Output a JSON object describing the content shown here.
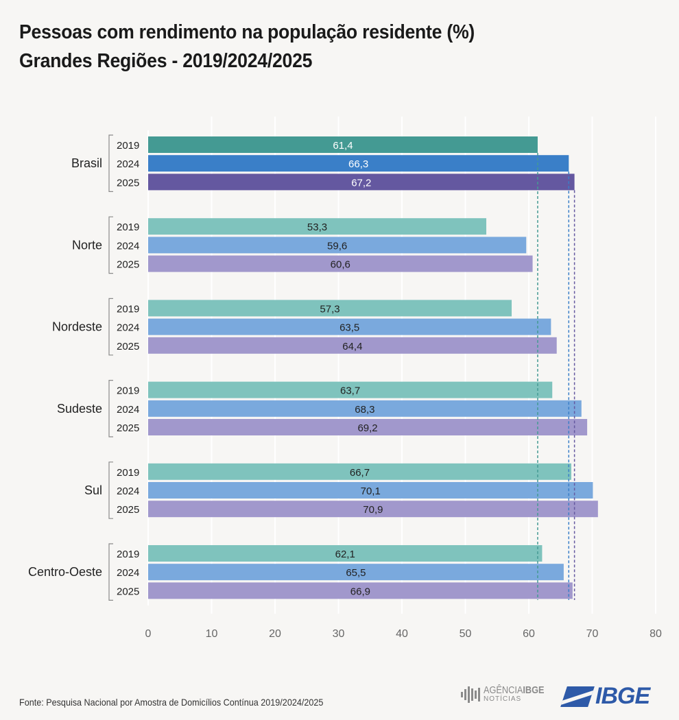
{
  "title": {
    "line1": "Pessoas com rendimento na população residente (%)",
    "line2": "Grandes Regiões - 2019/2024/2025"
  },
  "chart_data": {
    "type": "bar",
    "orientation": "horizontal",
    "categories": [
      "Brasil",
      "Norte",
      "Nordeste",
      "Sudeste",
      "Sul",
      "Centro-Oeste"
    ],
    "series": [
      {
        "name": "2019",
        "values": [
          61.4,
          53.3,
          57.3,
          63.7,
          66.7,
          62.1
        ]
      },
      {
        "name": "2024",
        "values": [
          66.3,
          59.6,
          63.5,
          68.3,
          70.1,
          65.5
        ]
      },
      {
        "name": "2025",
        "values": [
          67.2,
          60.6,
          64.4,
          69.2,
          70.9,
          66.9
        ]
      }
    ],
    "value_labels": [
      [
        "61,4",
        "66,3",
        "67,2"
      ],
      [
        "53,3",
        "59,6",
        "60,6"
      ],
      [
        "57,3",
        "63,5",
        "64,4"
      ],
      [
        "63,7",
        "68,3",
        "69,2"
      ],
      [
        "66,7",
        "70,1",
        "70,9"
      ],
      [
        "62,1",
        "65,5",
        "66,9"
      ]
    ],
    "xlim": [
      0,
      80
    ],
    "x_ticks": [
      0,
      10,
      20,
      30,
      40,
      50,
      60,
      70,
      80
    ],
    "grid": true,
    "reference_lines": [
      61.4,
      66.3,
      67.2
    ],
    "colors": {
      "highlight": [
        "#449a93",
        "#3a7fc8",
        "#6458a0"
      ],
      "regular": [
        "#7fc3bd",
        "#7aa9dd",
        "#a198cc"
      ],
      "reference": [
        "#449a93",
        "#3a7fc8",
        "#6458a0"
      ],
      "highlight_label": "#ffffff",
      "regular_label": "#222222",
      "grid": "#ffffff"
    }
  },
  "footer": {
    "source": "Fonte: Pesquisa Nacional por Amostra de Domicílios Contínua 2019/2024/2025"
  },
  "logos": {
    "agencia_main": "AGÊNCIA",
    "agencia_bold": "IBGE",
    "agencia_sub": "NOTÍCIAS",
    "ibge": "IBGE"
  }
}
